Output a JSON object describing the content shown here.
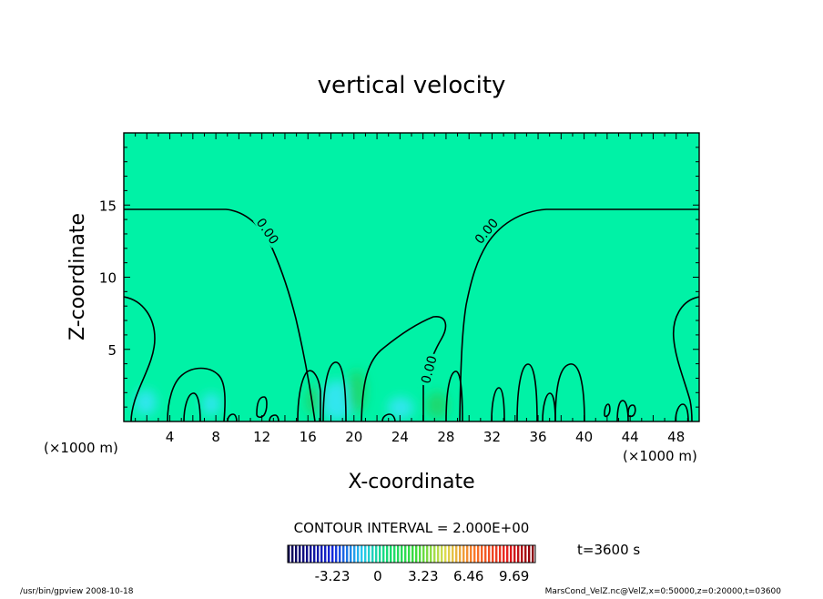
{
  "chart_data": {
    "type": "heatmap",
    "title": "vertical velocity",
    "xlabel": "X-coordinate",
    "ylabel": "Z-coordinate",
    "x_unit": "(×1000 m)",
    "x_unit_right": "(×1000 m)",
    "xlim": [
      0,
      50
    ],
    "ylim": [
      0,
      20
    ],
    "x_ticks": [
      4,
      8,
      12,
      16,
      20,
      24,
      28,
      32,
      36,
      40,
      44,
      48
    ],
    "y_ticks": [
      5,
      10,
      15
    ],
    "contour_interval": "CONTOUR INTERVAL = 2.000E+00",
    "contour_labels": [
      {
        "text": "0.00",
        "x": 12.5,
        "z": 13.2,
        "angle": 55
      },
      {
        "text": "0.00",
        "x": 31.5,
        "z": 13.2,
        "angle": -50
      },
      {
        "text": "0.00",
        "x": 26.5,
        "z": 3.6,
        "angle": -75
      }
    ],
    "colorbar": {
      "ticks": [
        "-3.23",
        "0",
        "3.23",
        "6.46",
        "9.69"
      ],
      "tick_values": [
        -3.23,
        0,
        3.23,
        6.46,
        9.69
      ],
      "range": [
        -6.4,
        11.2
      ]
    },
    "time_label": "t=3600 s",
    "footer_left": "/usr/bin/gpview   2008-10-18",
    "footer_right": "MarsCond_VelZ.nc@VelZ,x=0:50000,z=0:20000,t=03600",
    "colors": {
      "background_field": "#00f2a6",
      "positive_patch": "#1ad86e",
      "negative_patch": "#32e6ee",
      "contour": "#000000"
    }
  }
}
